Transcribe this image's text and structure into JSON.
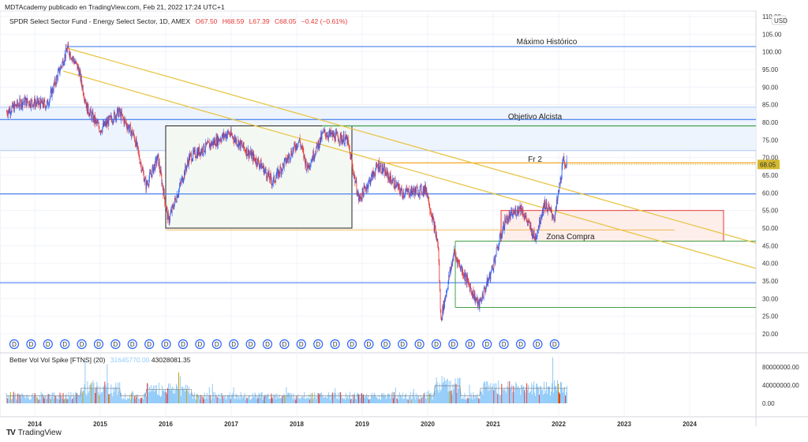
{
  "publisher": "MDTAcademy publicado en TradingView.com, Feb 21, 2022 17:24 UTC+1",
  "symbol": {
    "title": "SPDR Select Sector Fund - Energy Select Sector, 1D, AMEX",
    "open": "O67.50",
    "high": "H68.59",
    "low": "L67.39",
    "close": "C68.05",
    "change": "−0.42 (−0.61%)"
  },
  "currency": "USD",
  "last_price": "68.05",
  "price_axis": [
    "110.00",
    "105.00",
    "100.00",
    "95.00",
    "90.00",
    "85.00",
    "80.00",
    "75.00",
    "70.00",
    "65.00",
    "60.00",
    "55.00",
    "50.00",
    "45.00",
    "40.00",
    "35.00",
    "30.00",
    "25.00",
    "20.00"
  ],
  "volume_axis": [
    "80000000.00",
    "40000000.00",
    "0.00"
  ],
  "time_axis": [
    "2014",
    "2015",
    "2016",
    "2017",
    "2018",
    "2019",
    "2020",
    "2021",
    "2022",
    "2023",
    "2024"
  ],
  "annotations": {
    "ath": "Máximo Histórico",
    "target": "Objetivo Alcista",
    "fr2": "Fr 2",
    "buy_zone": "Zona Compra"
  },
  "dividend_marker": "D",
  "volume_indicator": {
    "name": "Better Vol Vol Spike [FTNS] (20)",
    "value1": "31645770.00",
    "value2": "43028081.35"
  },
  "brand": "TradingView",
  "colors": {
    "up": "#2962ff",
    "down": "#e53935",
    "blue_line": "#5b8def",
    "green": "#43a047",
    "orange": "#f5a623",
    "yellow": "#e8c547"
  },
  "chart_data": {
    "type": "candlestick",
    "price_key_points": [
      [
        2013.57,
        83
      ],
      [
        2013.83,
        86
      ],
      [
        2014.19,
        85
      ],
      [
        2014.5,
        101
      ],
      [
        2014.67,
        95
      ],
      [
        2014.8,
        84
      ],
      [
        2015.0,
        78
      ],
      [
        2015.28,
        83
      ],
      [
        2015.52,
        76
      ],
      [
        2015.7,
        62
      ],
      [
        2015.88,
        70
      ],
      [
        2016.04,
        52
      ],
      [
        2016.36,
        70
      ],
      [
        2016.96,
        77
      ],
      [
        2017.45,
        68
      ],
      [
        2017.63,
        63
      ],
      [
        2018.04,
        75
      ],
      [
        2018.16,
        67
      ],
      [
        2018.41,
        77
      ],
      [
        2018.77,
        75
      ],
      [
        2018.95,
        58
      ],
      [
        2019.25,
        68
      ],
      [
        2019.61,
        60
      ],
      [
        2019.98,
        61
      ],
      [
        2020.16,
        45
      ],
      [
        2020.2,
        24
      ],
      [
        2020.4,
        43
      ],
      [
        2020.78,
        28
      ],
      [
        2020.96,
        37
      ],
      [
        2021.18,
        52
      ],
      [
        2021.42,
        56
      ],
      [
        2021.64,
        47
      ],
      [
        2021.78,
        57
      ],
      [
        2021.94,
        53
      ],
      [
        2022.07,
        69
      ],
      [
        2022.13,
        68
      ]
    ],
    "horizontal_levels": [
      101.5,
      84.3,
      80.8,
      79,
      72,
      68.5,
      59.7,
      49.5,
      46.3,
      34.5,
      27.5
    ],
    "ylim": [
      18,
      110
    ]
  }
}
